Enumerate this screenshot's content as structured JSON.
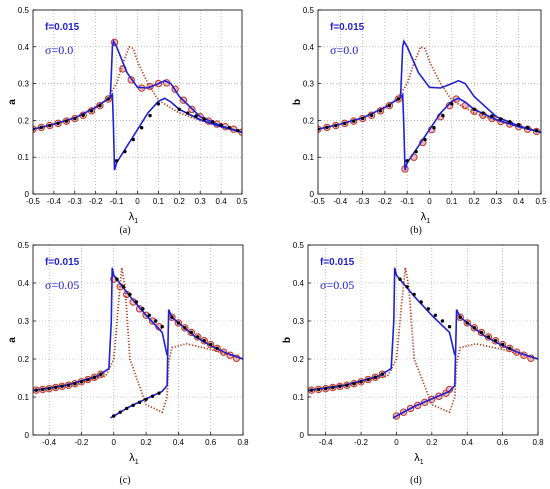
{
  "chart_data": [
    {
      "type": "line",
      "caption": "(a)",
      "ylabel": "a",
      "xlabel_main": "λ",
      "xlabel_sub": "1",
      "xlim": [
        -0.5,
        0.5
      ],
      "ylim": [
        0,
        0.5
      ],
      "xticks": [
        "-0.5",
        "-0.4",
        "-0.3",
        "-0.2",
        "-0.1",
        "0",
        "0.1",
        "0.2",
        "0.3",
        "0.4",
        "0.5"
      ],
      "yticks": [
        "0",
        "0.1",
        "0.2",
        "0.3",
        "0.4",
        "0.5"
      ],
      "annotations": [
        "f=0.015",
        "σ=0.0"
      ],
      "grid": true,
      "series": [
        {
          "style": "blue-solid",
          "x": [
            -0.5,
            -0.4,
            -0.3,
            -0.2,
            -0.15,
            -0.13,
            -0.12,
            -0.115,
            -0.11,
            -0.1,
            -0.05,
            0.0,
            0.05,
            0.1,
            0.13,
            0.16,
            0.2,
            0.3,
            0.4,
            0.5
          ],
          "y": [
            0.176,
            0.19,
            0.207,
            0.235,
            0.255,
            0.262,
            0.27,
            0.18,
            0.065,
            0.085,
            0.13,
            0.175,
            0.22,
            0.252,
            0.26,
            0.25,
            0.23,
            0.202,
            0.183,
            0.168
          ]
        },
        {
          "style": "blue-solid",
          "x": [
            -0.13,
            -0.125,
            -0.12,
            -0.115,
            -0.1,
            -0.05,
            0.0,
            0.05,
            0.1,
            0.13,
            0.16,
            0.2,
            0.3,
            0.4,
            0.5
          ],
          "y": [
            0.262,
            0.33,
            0.4,
            0.415,
            0.4,
            0.33,
            0.29,
            0.288,
            0.3,
            0.308,
            0.3,
            0.265,
            0.21,
            0.185,
            0.168
          ]
        },
        {
          "style": "red-dotted",
          "x": [
            -0.5,
            -0.3,
            -0.15,
            -0.1,
            -0.07,
            -0.04,
            -0.02,
            0.0,
            0.05,
            0.1,
            0.2,
            0.3,
            0.4,
            0.5
          ],
          "y": [
            0.175,
            0.205,
            0.255,
            0.3,
            0.355,
            0.4,
            0.395,
            0.36,
            0.3,
            0.255,
            0.22,
            0.2,
            0.183,
            0.168
          ]
        },
        {
          "style": "black-dots",
          "x": [
            -0.5,
            -0.46,
            -0.42,
            -0.38,
            -0.34,
            -0.3,
            -0.26,
            -0.22,
            -0.18,
            -0.14,
            -0.1,
            -0.06,
            -0.02,
            0.02,
            0.06,
            0.1,
            0.2,
            0.24,
            0.28,
            0.32,
            0.36,
            0.4,
            0.44,
            0.48
          ],
          "y": [
            0.176,
            0.181,
            0.186,
            0.192,
            0.198,
            0.205,
            0.214,
            0.226,
            0.24,
            0.258,
            0.09,
            0.115,
            0.148,
            0.18,
            0.213,
            0.245,
            0.23,
            0.22,
            0.212,
            0.204,
            0.196,
            0.188,
            0.18,
            0.172
          ]
        },
        {
          "style": "red-circles",
          "x": [
            -0.5,
            -0.46,
            -0.42,
            -0.38,
            -0.34,
            -0.3,
            -0.26,
            -0.22,
            -0.18,
            -0.14,
            -0.11,
            -0.07,
            -0.03,
            0.02,
            0.06,
            0.1,
            0.14,
            0.18,
            0.22,
            0.26,
            0.3,
            0.34,
            0.38,
            0.42,
            0.46,
            0.5
          ],
          "y": [
            0.176,
            0.181,
            0.186,
            0.192,
            0.198,
            0.205,
            0.214,
            0.226,
            0.24,
            0.258,
            0.412,
            0.34,
            0.31,
            0.288,
            0.292,
            0.3,
            0.302,
            0.285,
            0.255,
            0.23,
            0.21,
            0.198,
            0.19,
            0.183,
            0.176,
            0.168
          ]
        }
      ]
    },
    {
      "type": "line",
      "caption": "(b)",
      "ylabel": "b",
      "xlabel_main": "λ",
      "xlabel_sub": "1",
      "xlim": [
        -0.5,
        0.5
      ],
      "ylim": [
        0,
        0.5
      ],
      "xticks": [
        "-0.5",
        "-0.4",
        "-0.3",
        "-0.2",
        "-0.1",
        "0",
        "0.1",
        "0.2",
        "0.3",
        "0.4",
        "0.5"
      ],
      "yticks": [
        "0",
        "0.1",
        "0.2",
        "0.3",
        "0.4",
        "0.5"
      ],
      "annotations": [
        "f=0.015",
        "σ=0.0"
      ],
      "grid": true,
      "series": [
        {
          "style": "blue-solid",
          "x": [
            -0.5,
            -0.4,
            -0.3,
            -0.2,
            -0.15,
            -0.13,
            -0.12,
            -0.115,
            -0.11,
            -0.1,
            -0.05,
            0.0,
            0.05,
            0.1,
            0.13,
            0.16,
            0.2,
            0.3,
            0.4,
            0.5
          ],
          "y": [
            0.176,
            0.19,
            0.207,
            0.235,
            0.255,
            0.262,
            0.27,
            0.18,
            0.065,
            0.085,
            0.13,
            0.175,
            0.22,
            0.252,
            0.26,
            0.25,
            0.23,
            0.202,
            0.183,
            0.168
          ]
        },
        {
          "style": "blue-solid",
          "x": [
            -0.13,
            -0.125,
            -0.12,
            -0.115,
            -0.1,
            -0.05,
            0.0,
            0.05,
            0.1,
            0.13,
            0.16,
            0.2,
            0.3,
            0.4,
            0.5
          ],
          "y": [
            0.262,
            0.33,
            0.4,
            0.415,
            0.4,
            0.33,
            0.29,
            0.288,
            0.3,
            0.308,
            0.3,
            0.265,
            0.21,
            0.185,
            0.168
          ]
        },
        {
          "style": "red-dotted",
          "x": [
            -0.5,
            -0.3,
            -0.15,
            -0.1,
            -0.07,
            -0.04,
            -0.02,
            0.0,
            0.05,
            0.1,
            0.2,
            0.3,
            0.4,
            0.5
          ],
          "y": [
            0.175,
            0.205,
            0.255,
            0.3,
            0.355,
            0.4,
            0.395,
            0.36,
            0.3,
            0.255,
            0.22,
            0.2,
            0.183,
            0.168
          ]
        },
        {
          "style": "black-dots",
          "x": [
            -0.5,
            -0.46,
            -0.42,
            -0.38,
            -0.34,
            -0.3,
            -0.26,
            -0.22,
            -0.18,
            -0.14,
            -0.1,
            -0.06,
            -0.02,
            0.02,
            0.06,
            0.1,
            0.2,
            0.24,
            0.28,
            0.32,
            0.36,
            0.4,
            0.44,
            0.48
          ],
          "y": [
            0.176,
            0.181,
            0.186,
            0.192,
            0.198,
            0.205,
            0.214,
            0.226,
            0.24,
            0.258,
            0.09,
            0.115,
            0.148,
            0.18,
            0.213,
            0.245,
            0.23,
            0.22,
            0.212,
            0.204,
            0.196,
            0.188,
            0.18,
            0.172
          ]
        },
        {
          "style": "red-circles",
          "x": [
            -0.5,
            -0.46,
            -0.42,
            -0.38,
            -0.34,
            -0.3,
            -0.26,
            -0.22,
            -0.18,
            -0.14,
            -0.11,
            -0.07,
            -0.03,
            0.01,
            0.05,
            0.09,
            0.12,
            0.16,
            0.2,
            0.24,
            0.28,
            0.32,
            0.36,
            0.4,
            0.44,
            0.48
          ],
          "y": [
            0.176,
            0.181,
            0.186,
            0.192,
            0.198,
            0.205,
            0.214,
            0.226,
            0.24,
            0.258,
            0.068,
            0.1,
            0.14,
            0.175,
            0.21,
            0.24,
            0.258,
            0.24,
            0.225,
            0.214,
            0.205,
            0.197,
            0.19,
            0.183,
            0.176,
            0.17
          ]
        }
      ]
    },
    {
      "type": "line",
      "caption": "(c)",
      "ylabel": "a",
      "xlabel_main": "λ",
      "xlabel_sub": "1",
      "xlim": [
        -0.5,
        0.8
      ],
      "ylim": [
        0,
        0.5
      ],
      "xticks": [
        "-0.4",
        "-0.2",
        "0",
        "0.2",
        "0.4",
        "0.6",
        "0.8"
      ],
      "yticks": [
        "0",
        "0.1",
        "0.2",
        "0.3",
        "0.4",
        "0.5"
      ],
      "annotations": [
        "f=0.015",
        "σ=0.05"
      ],
      "grid": true,
      "series": [
        {
          "style": "blue-solid",
          "x": [
            -0.5,
            -0.3,
            -0.1,
            -0.03,
            -0.015,
            -0.01,
            0.0,
            0.1,
            0.2,
            0.3,
            0.33
          ],
          "y": [
            0.117,
            0.13,
            0.155,
            0.175,
            0.3,
            0.44,
            0.42,
            0.365,
            0.315,
            0.27,
            0.21
          ]
        },
        {
          "style": "blue-solid",
          "x": [
            -0.02,
            0.0,
            0.1,
            0.2,
            0.3,
            0.33,
            0.34,
            0.36,
            0.5,
            0.6,
            0.7,
            0.8
          ],
          "y": [
            0.045,
            0.05,
            0.075,
            0.095,
            0.115,
            0.13,
            0.33,
            0.31,
            0.26,
            0.235,
            0.215,
            0.2
          ]
        },
        {
          "style": "red-dotted",
          "x": [
            -0.5,
            -0.2,
            -0.05,
            0.0,
            0.03,
            0.05,
            0.07,
            0.1,
            0.2,
            0.3,
            0.33,
            0.34,
            0.36,
            0.45,
            0.6,
            0.8
          ],
          "y": [
            0.117,
            0.14,
            0.155,
            0.2,
            0.35,
            0.44,
            0.39,
            0.2,
            0.08,
            0.06,
            0.1,
            0.19,
            0.23,
            0.24,
            0.225,
            0.2
          ]
        },
        {
          "style": "black-dots",
          "x": [
            -0.48,
            -0.44,
            -0.4,
            -0.36,
            -0.32,
            -0.28,
            -0.24,
            -0.2,
            -0.16,
            -0.12,
            -0.08,
            0.0,
            0.04,
            0.08,
            0.12,
            0.16,
            0.2,
            0.24,
            0.28,
            0.02,
            0.06,
            0.1,
            0.14,
            0.18,
            0.22,
            0.26,
            0.3,
            0.36,
            0.4,
            0.44,
            0.48,
            0.52,
            0.56,
            0.6,
            0.64
          ],
          "y": [
            0.118,
            0.12,
            0.122,
            0.125,
            0.128,
            0.131,
            0.135,
            0.14,
            0.146,
            0.152,
            0.16,
            0.05,
            0.06,
            0.07,
            0.078,
            0.086,
            0.094,
            0.102,
            0.11,
            0.41,
            0.39,
            0.37,
            0.35,
            0.332,
            0.315,
            0.3,
            0.285,
            0.31,
            0.295,
            0.282,
            0.27,
            0.258,
            0.248,
            0.238,
            0.228
          ]
        },
        {
          "style": "red-circles",
          "x": [
            -0.48,
            -0.44,
            -0.4,
            -0.36,
            -0.32,
            -0.28,
            -0.24,
            -0.2,
            -0.16,
            -0.12,
            -0.08,
            0.0,
            0.04,
            0.08,
            0.12,
            0.16,
            0.2,
            0.24,
            0.28,
            0.36,
            0.4,
            0.44,
            0.48,
            0.52,
            0.56,
            0.6,
            0.64,
            0.68,
            0.72,
            0.76
          ],
          "y": [
            0.118,
            0.12,
            0.122,
            0.125,
            0.128,
            0.131,
            0.135,
            0.14,
            0.146,
            0.152,
            0.16,
            0.41,
            0.39,
            0.37,
            0.35,
            0.332,
            0.315,
            0.3,
            0.285,
            0.31,
            0.295,
            0.282,
            0.27,
            0.258,
            0.248,
            0.238,
            0.228,
            0.218,
            0.21,
            0.202
          ]
        }
      ]
    },
    {
      "type": "line",
      "caption": "(d)",
      "ylabel": "b",
      "xlabel_main": "λ",
      "xlabel_sub": "1",
      "xlim": [
        -0.5,
        0.8
      ],
      "ylim": [
        0,
        0.5
      ],
      "xticks": [
        "-0.4",
        "-0.2",
        "0",
        "0.2",
        "0.4",
        "0.6",
        "0.8"
      ],
      "yticks": [
        "0",
        "0.1",
        "0.2",
        "0.3",
        "0.4",
        "0.5"
      ],
      "annotations": [
        "f=0.015",
        "σ=0.05"
      ],
      "grid": true,
      "series": [
        {
          "style": "blue-solid",
          "x": [
            -0.5,
            -0.3,
            -0.1,
            -0.03,
            -0.015,
            -0.01,
            0.0,
            0.1,
            0.2,
            0.3,
            0.33
          ],
          "y": [
            0.117,
            0.13,
            0.155,
            0.175,
            0.3,
            0.44,
            0.42,
            0.365,
            0.315,
            0.27,
            0.21
          ]
        },
        {
          "style": "blue-solid",
          "x": [
            -0.02,
            0.0,
            0.1,
            0.2,
            0.3,
            0.33,
            0.34,
            0.36,
            0.5,
            0.6,
            0.7,
            0.8
          ],
          "y": [
            0.045,
            0.05,
            0.075,
            0.095,
            0.115,
            0.13,
            0.33,
            0.31,
            0.26,
            0.235,
            0.215,
            0.2
          ]
        },
        {
          "style": "red-dotted",
          "x": [
            -0.5,
            -0.2,
            -0.05,
            0.0,
            0.03,
            0.05,
            0.07,
            0.1,
            0.2,
            0.3,
            0.33,
            0.34,
            0.36,
            0.45,
            0.6,
            0.8
          ],
          "y": [
            0.117,
            0.14,
            0.155,
            0.2,
            0.35,
            0.44,
            0.39,
            0.2,
            0.08,
            0.06,
            0.1,
            0.19,
            0.23,
            0.24,
            0.225,
            0.2
          ]
        },
        {
          "style": "black-dots",
          "x": [
            -0.48,
            -0.44,
            -0.4,
            -0.36,
            -0.32,
            -0.28,
            -0.24,
            -0.2,
            -0.16,
            -0.12,
            -0.08,
            0.02,
            0.06,
            0.1,
            0.14,
            0.18,
            0.22,
            0.26,
            0.3,
            0.36,
            0.4,
            0.44,
            0.48,
            0.52,
            0.56,
            0.6,
            0.64
          ],
          "y": [
            0.118,
            0.12,
            0.122,
            0.125,
            0.128,
            0.131,
            0.135,
            0.14,
            0.146,
            0.152,
            0.16,
            0.41,
            0.39,
            0.37,
            0.35,
            0.332,
            0.315,
            0.3,
            0.285,
            0.31,
            0.295,
            0.282,
            0.27,
            0.258,
            0.248,
            0.238,
            0.228
          ]
        },
        {
          "style": "red-circles",
          "x": [
            -0.48,
            -0.44,
            -0.4,
            -0.36,
            -0.32,
            -0.28,
            -0.24,
            -0.2,
            -0.16,
            -0.12,
            -0.08,
            0.0,
            0.04,
            0.08,
            0.12,
            0.16,
            0.2,
            0.24,
            0.28,
            0.3,
            0.36,
            0.4,
            0.44,
            0.48,
            0.52,
            0.56,
            0.6,
            0.64,
            0.68,
            0.72,
            0.76
          ],
          "y": [
            0.118,
            0.12,
            0.122,
            0.125,
            0.128,
            0.131,
            0.135,
            0.14,
            0.146,
            0.152,
            0.16,
            0.05,
            0.06,
            0.07,
            0.078,
            0.086,
            0.094,
            0.102,
            0.11,
            0.12,
            0.31,
            0.295,
            0.282,
            0.27,
            0.258,
            0.248,
            0.238,
            0.228,
            0.218,
            0.21,
            0.202
          ]
        }
      ]
    }
  ],
  "colors": {
    "blue": "#1f1fd6",
    "red_dotted": "#b5401c",
    "circle_edge": "#c0392b",
    "circle_fill": "#e8a0a0",
    "dots": "#000000",
    "grid": "#9a9a9a"
  }
}
